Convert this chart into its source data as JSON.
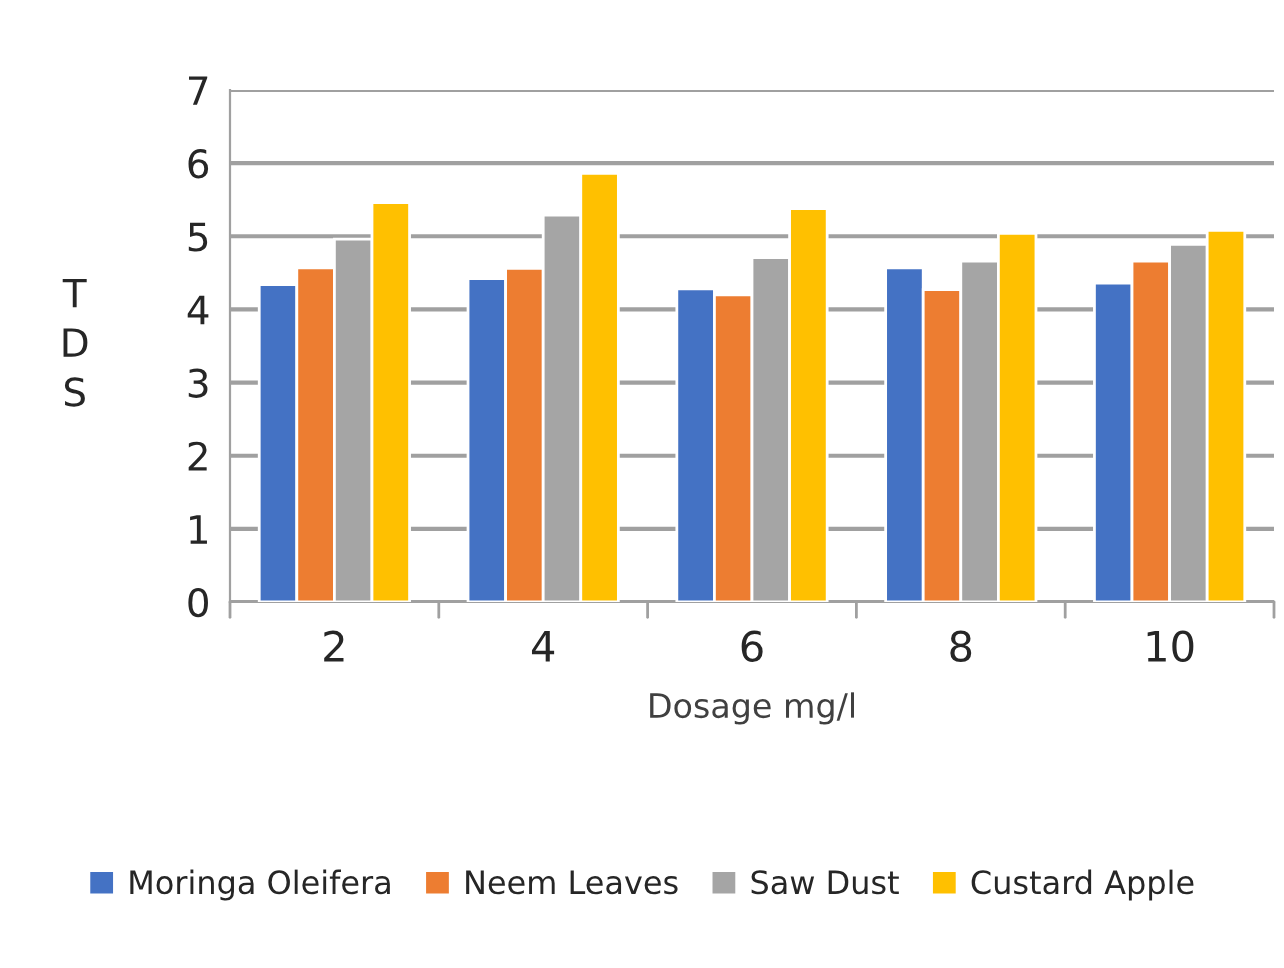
{
  "chart_data": {
    "type": "bar",
    "xlabel": "Dosage mg/l",
    "ylabel": "TDS",
    "categories": [
      "2",
      "4",
      "6",
      "8",
      "10"
    ],
    "series": [
      {
        "name": "Moringa Oleifera",
        "color": "#4472c4",
        "values": [
          4.34,
          4.42,
          4.28,
          4.57,
          4.36
        ]
      },
      {
        "name": "Neem Leaves",
        "color": "#ed7d31",
        "values": [
          4.57,
          4.56,
          4.2,
          4.27,
          4.66
        ]
      },
      {
        "name": "Saw Dust",
        "color": "#a5a5a5",
        "values": [
          4.96,
          5.29,
          4.71,
          4.66,
          4.89
        ]
      },
      {
        "name": "Custard Apple",
        "color": "#ffc000",
        "values": [
          5.46,
          5.86,
          5.38,
          5.04,
          5.08
        ]
      }
    ],
    "ylim": [
      0,
      7
    ],
    "yticks": [
      0,
      1,
      2,
      3,
      4,
      5,
      6,
      7
    ],
    "grid": "y",
    "legend": "bottom"
  }
}
